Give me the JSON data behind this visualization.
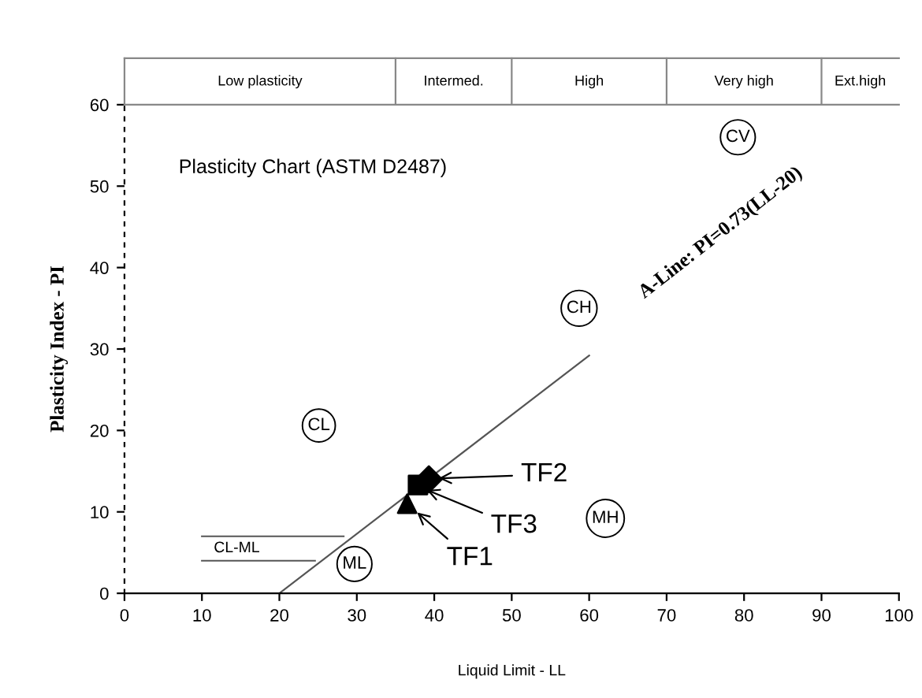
{
  "chart_data": {
    "type": "scatter",
    "title": "Plasticity Chart (ASTM D2487)",
    "xlabel": "Liquid Limit - LL",
    "ylabel": "Plasticity Index - PI",
    "xlim": [
      0,
      100
    ],
    "ylim": [
      0,
      60
    ],
    "xticks": [
      0,
      10,
      20,
      30,
      40,
      50,
      60,
      70,
      80,
      90,
      100
    ],
    "yticks": [
      0,
      10,
      20,
      30,
      40,
      50,
      60
    ],
    "grid": false,
    "series": [
      {
        "marker": "triangle",
        "color": "#000000",
        "x": [
          36.5
        ],
        "values": [
          11.0
        ]
      },
      {
        "marker": "diamond",
        "color": "#000000",
        "x": [
          39.3
        ],
        "values": [
          14.0
        ]
      },
      {
        "marker": "square",
        "color": "#000000",
        "x": [
          37.9
        ],
        "values": [
          13.3
        ]
      },
      {
        "type": "line",
        "color": "#555555",
        "x": [
          20,
          60
        ],
        "values": [
          0,
          29.2
        ]
      },
      {
        "type": "line",
        "color": "#555555",
        "x": [
          10,
          28.3
        ],
        "values": [
          7,
          7
        ]
      },
      {
        "type": "line",
        "color": "#555555",
        "x": [
          10,
          24.6
        ],
        "values": [
          4,
          4
        ]
      }
    ],
    "annotations": [
      "A-Line: PI=0.73(LL-20)",
      "CL-ML",
      "Low plasticity",
      "Intermed.",
      "High",
      "Very high",
      "Ext.high",
      "TF2",
      "TF3",
      {
        "text": "CL",
        "x": 25.1,
        "y": 20.6
      },
      {
        "text": "CH",
        "x": 58.7,
        "y": 35
      },
      {
        "text": "ML",
        "x": 29.7,
        "y": 3.6
      },
      {
        "text": "MH",
        "x": 62.1,
        "y": 9.2
      },
      {
        "text": "CV",
        "x": 79.2,
        "y": 56
      },
      {
        "text": "TF1",
        "x": 36.5,
        "y": 11.0
      }
    ]
  }
}
